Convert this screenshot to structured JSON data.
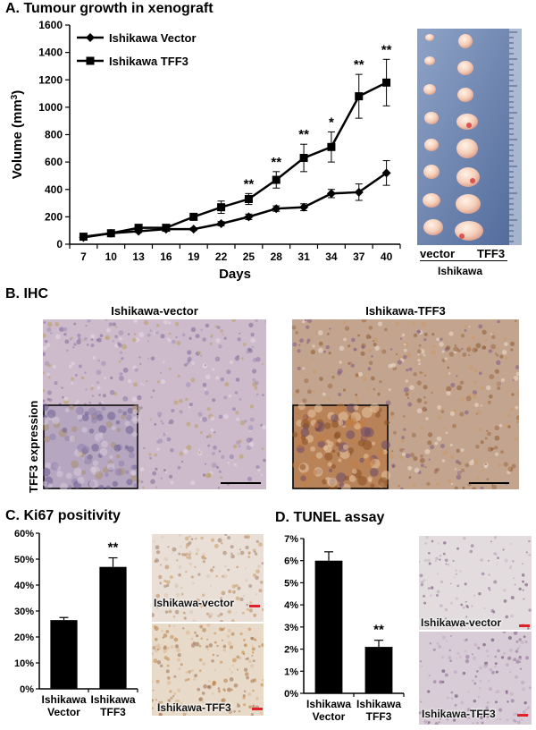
{
  "panels": {
    "a_title": "A. Tumour growth in xenograft",
    "b_title": "B. IHC",
    "c_title": "C. Ki67 positivity",
    "d_title": "D. TUNEL assay"
  },
  "photo_a": {
    "label_vector": "vector",
    "label_tff3": "TFF3",
    "label_group": "Ishikawa"
  },
  "ihc": {
    "row_label": "TFF3 expression",
    "left_label": "Ishikawa-vector",
    "right_label": "Ishikawa-TFF3"
  },
  "ki67_tiles": {
    "top": "Ishikawa-vector",
    "bottom": "Ishikawa-TFF3"
  },
  "tunel_tiles": {
    "top": "Ishikawa-vector",
    "bottom": "Ishikawa-TFF3"
  },
  "colors": {
    "ihc_bg": "#c9b4c3",
    "ihc_tff3_bg": "#b88f6f",
    "tumor": "#f1c8b4",
    "ruler": "#7e94b8",
    "scale_red": "#e0202a"
  },
  "chart_data": [
    {
      "type": "line",
      "title": "A. Tumour growth in xenograft",
      "xlabel": "Days",
      "ylabel": "Volume (mm",
      "ylabel_sup": "3",
      "ylabel_end": ")",
      "x": [
        7,
        10,
        13,
        16,
        19,
        22,
        25,
        28,
        31,
        34,
        37,
        40
      ],
      "ylim": [
        0,
        1600
      ],
      "yticks": [
        0,
        200,
        400,
        600,
        800,
        1000,
        1200,
        1400,
        1600
      ],
      "series": [
        {
          "name": "Ishikawa Vector",
          "marker": "diamond",
          "values": [
            50,
            80,
            95,
            110,
            110,
            150,
            200,
            260,
            270,
            370,
            380,
            520
          ],
          "errors": [
            10,
            10,
            10,
            10,
            10,
            15,
            20,
            20,
            25,
            30,
            60,
            90
          ]
        },
        {
          "name": "Ishikawa TFF3",
          "marker": "square",
          "values": [
            55,
            80,
            120,
            120,
            200,
            270,
            330,
            470,
            630,
            710,
            1080,
            1180
          ],
          "errors": [
            10,
            10,
            15,
            20,
            20,
            45,
            40,
            60,
            100,
            110,
            160,
            170
          ]
        }
      ],
      "significance": [
        {
          "x": 25,
          "label": "**"
        },
        {
          "x": 28,
          "label": "**"
        },
        {
          "x": 31,
          "label": "**"
        },
        {
          "x": 34,
          "label": "*"
        },
        {
          "x": 37,
          "label": "**"
        },
        {
          "x": 40,
          "label": "**"
        }
      ],
      "legend": "top-left"
    },
    {
      "type": "bar",
      "title": "C. Ki67 positivity",
      "categories": [
        [
          "Ishikawa",
          "Vector"
        ],
        [
          "Ishikawa",
          "TFF3"
        ]
      ],
      "values": [
        26.5,
        47
      ],
      "errors": [
        1,
        3.5
      ],
      "ylim": [
        0,
        60
      ],
      "yticks": [
        0,
        10,
        20,
        30,
        40,
        50,
        60
      ],
      "ytick_suffix": "%",
      "significance": [
        {
          "index": 1,
          "label": "**"
        }
      ]
    },
    {
      "type": "bar",
      "title": "D. TUNEL assay",
      "categories": [
        [
          "Ishikawa",
          "Vector"
        ],
        [
          "Ishikawa",
          "TFF3"
        ]
      ],
      "values": [
        6,
        2.1
      ],
      "errors": [
        0.4,
        0.3
      ],
      "ylim": [
        0,
        7
      ],
      "yticks": [
        0,
        1,
        2,
        3,
        4,
        5,
        6,
        7
      ],
      "ytick_suffix": "%",
      "significance": [
        {
          "index": 1,
          "label": "**"
        }
      ]
    }
  ]
}
